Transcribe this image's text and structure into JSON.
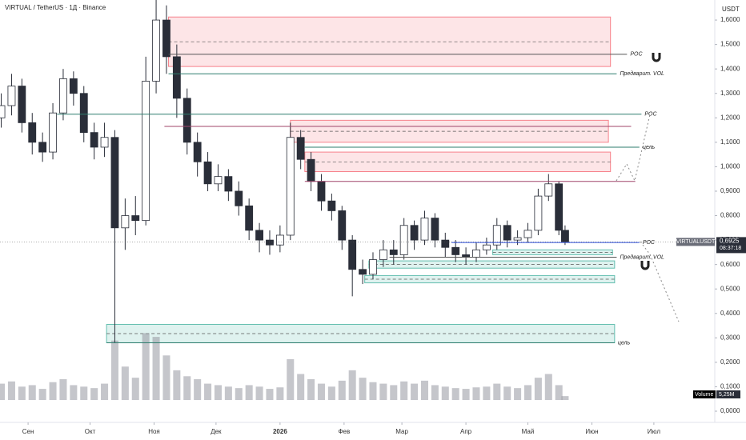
{
  "chart_data": {
    "type": "candlestick",
    "title": "VIRTUAL / TetherUS · 1Д · Binance",
    "currency": "USDT",
    "x": [
      -13,
      -8,
      -3,
      2,
      7,
      12,
      17,
      22,
      27,
      32,
      37,
      42,
      47,
      52,
      57,
      62,
      67,
      72,
      77,
      82,
      87,
      92,
      97,
      102,
      107,
      112,
      117,
      122,
      127,
      132,
      137,
      142,
      147,
      152,
      157,
      162,
      167,
      172,
      177,
      182,
      187,
      192,
      197,
      202,
      207,
      212,
      217,
      222,
      227,
      232,
      237,
      242,
      247,
      252,
      257,
      260
    ],
    "open": [
      1.2,
      1.25,
      1.33,
      1.18,
      1.1,
      1.06,
      1.22,
      1.36,
      1.3,
      1.14,
      1.08,
      1.12,
      0.75,
      0.8,
      0.78,
      1.35,
      1.6,
      1.45,
      1.28,
      1.1,
      1.02,
      0.93,
      0.96,
      0.9,
      0.84,
      0.74,
      0.7,
      0.68,
      0.72,
      1.12,
      1.03,
      0.94,
      0.86,
      0.82,
      0.7,
      0.58,
      0.56,
      0.62,
      0.66,
      0.64,
      0.76,
      0.7,
      0.79,
      0.7,
      0.67,
      0.64,
      0.63,
      0.66,
      0.68,
      0.76,
      0.7,
      0.71,
      0.74,
      0.88,
      0.93,
      0.74
    ],
    "high": [
      1.3,
      1.38,
      1.36,
      1.22,
      1.14,
      1.26,
      1.4,
      1.39,
      1.33,
      1.18,
      1.18,
      1.15,
      0.87,
      0.88,
      1.45,
      1.7,
      1.66,
      1.5,
      1.32,
      1.14,
      1.06,
      1.01,
      0.99,
      0.94,
      0.87,
      0.77,
      0.74,
      0.76,
      1.18,
      1.15,
      1.06,
      0.97,
      0.89,
      0.84,
      0.72,
      0.62,
      0.65,
      0.7,
      0.7,
      0.79,
      0.78,
      0.82,
      0.81,
      0.73,
      0.7,
      0.67,
      0.69,
      0.71,
      0.79,
      0.78,
      0.74,
      0.77,
      0.91,
      0.97,
      0.94,
      0.76
    ],
    "low": [
      1.16,
      1.21,
      1.14,
      1.05,
      1.02,
      1.03,
      1.19,
      1.25,
      1.1,
      1.03,
      1.04,
      0.28,
      0.66,
      0.72,
      0.76,
      1.3,
      1.38,
      1.2,
      1.05,
      0.96,
      0.9,
      0.9,
      0.86,
      0.8,
      0.7,
      0.65,
      0.64,
      0.65,
      0.7,
      0.99,
      0.9,
      0.82,
      0.78,
      0.66,
      0.47,
      0.52,
      0.54,
      0.59,
      0.6,
      0.62,
      0.66,
      0.68,
      0.67,
      0.63,
      0.61,
      0.6,
      0.61,
      0.64,
      0.66,
      0.67,
      0.68,
      0.69,
      0.72,
      0.86,
      0.72,
      0.68
    ],
    "close": [
      1.25,
      1.33,
      1.18,
      1.1,
      1.06,
      1.22,
      1.36,
      1.3,
      1.14,
      1.08,
      1.12,
      0.75,
      0.8,
      0.78,
      1.35,
      1.6,
      1.45,
      1.28,
      1.1,
      1.02,
      0.93,
      0.96,
      0.9,
      0.84,
      0.74,
      0.7,
      0.68,
      0.72,
      1.12,
      1.03,
      0.94,
      0.86,
      0.82,
      0.7,
      0.58,
      0.56,
      0.62,
      0.66,
      0.64,
      0.76,
      0.7,
      0.79,
      0.7,
      0.67,
      0.64,
      0.63,
      0.66,
      0.68,
      0.76,
      0.7,
      0.71,
      0.74,
      0.88,
      0.93,
      0.74,
      0.6925
    ],
    "volume": [
      22,
      25,
      18,
      20,
      15,
      24,
      28,
      20,
      18,
      16,
      22,
      80,
      45,
      30,
      90,
      85,
      60,
      40,
      32,
      28,
      22,
      20,
      18,
      16,
      20,
      18,
      15,
      17,
      55,
      35,
      28,
      22,
      18,
      26,
      40,
      30,
      24,
      22,
      20,
      25,
      22,
      26,
      20,
      18,
      16,
      15,
      17,
      18,
      22,
      18,
      16,
      20,
      30,
      35,
      20,
      5.25
    ],
    "volume_ylim": [
      0,
      140
    ],
    "up_color": "#ffffff",
    "down_color": "#2a2e39",
    "volume_color": "#9598a1",
    "xlim": [
      -13.6,
      332.5
    ],
    "xticks": [
      {
        "value": 0,
        "label": "Сен"
      },
      {
        "value": 30,
        "label": "Окт"
      },
      {
        "value": 61,
        "label": "Ноя"
      },
      {
        "value": 91,
        "label": "Дек"
      },
      {
        "value": 122,
        "label": "2026"
      },
      {
        "value": 153,
        "label": "Фев"
      },
      {
        "value": 181,
        "label": "Мар"
      },
      {
        "value": 212,
        "label": "Апр"
      },
      {
        "value": 242,
        "label": "Май"
      },
      {
        "value": 273,
        "label": "Июн"
      },
      {
        "value": 303,
        "label": "Июл"
      }
    ],
    "ylim": [
      -0.0458,
      1.682
    ],
    "yticks": [
      {
        "value": 0,
        "label": "0,0000"
      },
      {
        "value": 0.1,
        "label": "0,1000"
      },
      {
        "value": 0.2,
        "label": "0,2000"
      },
      {
        "value": 0.3,
        "label": "0,3000"
      },
      {
        "value": 0.4,
        "label": "0,4000"
      },
      {
        "value": 0.5,
        "label": "0,5000"
      },
      {
        "value": 0.6,
        "label": "0,6000"
      },
      {
        "value": 0.7,
        "label": "0,7000"
      },
      {
        "value": 0.8,
        "label": "0,8000"
      },
      {
        "value": 0.9,
        "label": "0,9000"
      },
      {
        "value": 1.0,
        "label": "1,0000"
      },
      {
        "value": 1.1,
        "label": "1,1000"
      },
      {
        "value": 1.2,
        "label": "1,2000"
      },
      {
        "value": 1.3,
        "label": "1,3000"
      },
      {
        "value": 1.4,
        "label": "1,4000"
      },
      {
        "value": 1.5,
        "label": "1,5000"
      },
      {
        "value": 1.6,
        "label": "1,6000"
      }
    ],
    "zones": [
      {
        "top": 1.6125,
        "bottom": 1.41,
        "from": 68,
        "to": 282,
        "color": "#f23645"
      },
      {
        "top": 1.19,
        "bottom": 1.1,
        "from": 127,
        "to": 281,
        "color": "#f23645"
      },
      {
        "top": 1.06,
        "bottom": 0.98,
        "from": 134,
        "to": 282,
        "color": "#f23645"
      },
      {
        "top": 0.66,
        "bottom": 0.64,
        "from": 225,
        "to": 283,
        "color": "#089981"
      },
      {
        "top": 0.615,
        "bottom": 0.585,
        "from": 165,
        "to": 284,
        "color": "#089981"
      },
      {
        "top": 0.555,
        "bottom": 0.525,
        "from": 163,
        "to": 284,
        "color": "#089981"
      },
      {
        "top": 0.355,
        "bottom": 0.28,
        "from": 38,
        "to": 284,
        "color": "#089981"
      }
    ],
    "levels": [
      {
        "price": 1.46,
        "from": 68,
        "to": 290,
        "label": "POC",
        "color": "#555555"
      },
      {
        "price": 1.38,
        "from": 68,
        "to": 285,
        "label": "Предварит. VOL",
        "color": "#2e7d6e"
      },
      {
        "price": 1.215,
        "from": 14,
        "to": 297,
        "label": "POC",
        "color": "#2e7d6e"
      },
      {
        "price": 1.165,
        "from": 66,
        "to": 292,
        "color": "#a0456a"
      },
      {
        "price": 1.08,
        "from": 134,
        "to": 296,
        "label": "цель",
        "color": "#2e7d6e"
      },
      {
        "price": 0.94,
        "from": 134,
        "to": 294,
        "color": "#a0456a"
      },
      {
        "price": 0.69,
        "from": 205,
        "to": 296,
        "label": "POC",
        "color": "#2a4bd7"
      },
      {
        "price": 0.63,
        "from": 175,
        "to": 285,
        "label": "Предварит. VOL",
        "color": "#555555"
      },
      {
        "price": 0.28,
        "from": 38,
        "to": 284,
        "label": "цель",
        "color": "#2e7d6e"
      }
    ],
    "symbol": "VIRTUALUSDT",
    "last_price": {
      "value": 0.6925,
      "label": "0,6925"
    },
    "countdown": "08:37:18",
    "volume_title": "Volume",
    "volume_last": {
      "value": 5.25,
      "label": "5,25M"
    }
  }
}
